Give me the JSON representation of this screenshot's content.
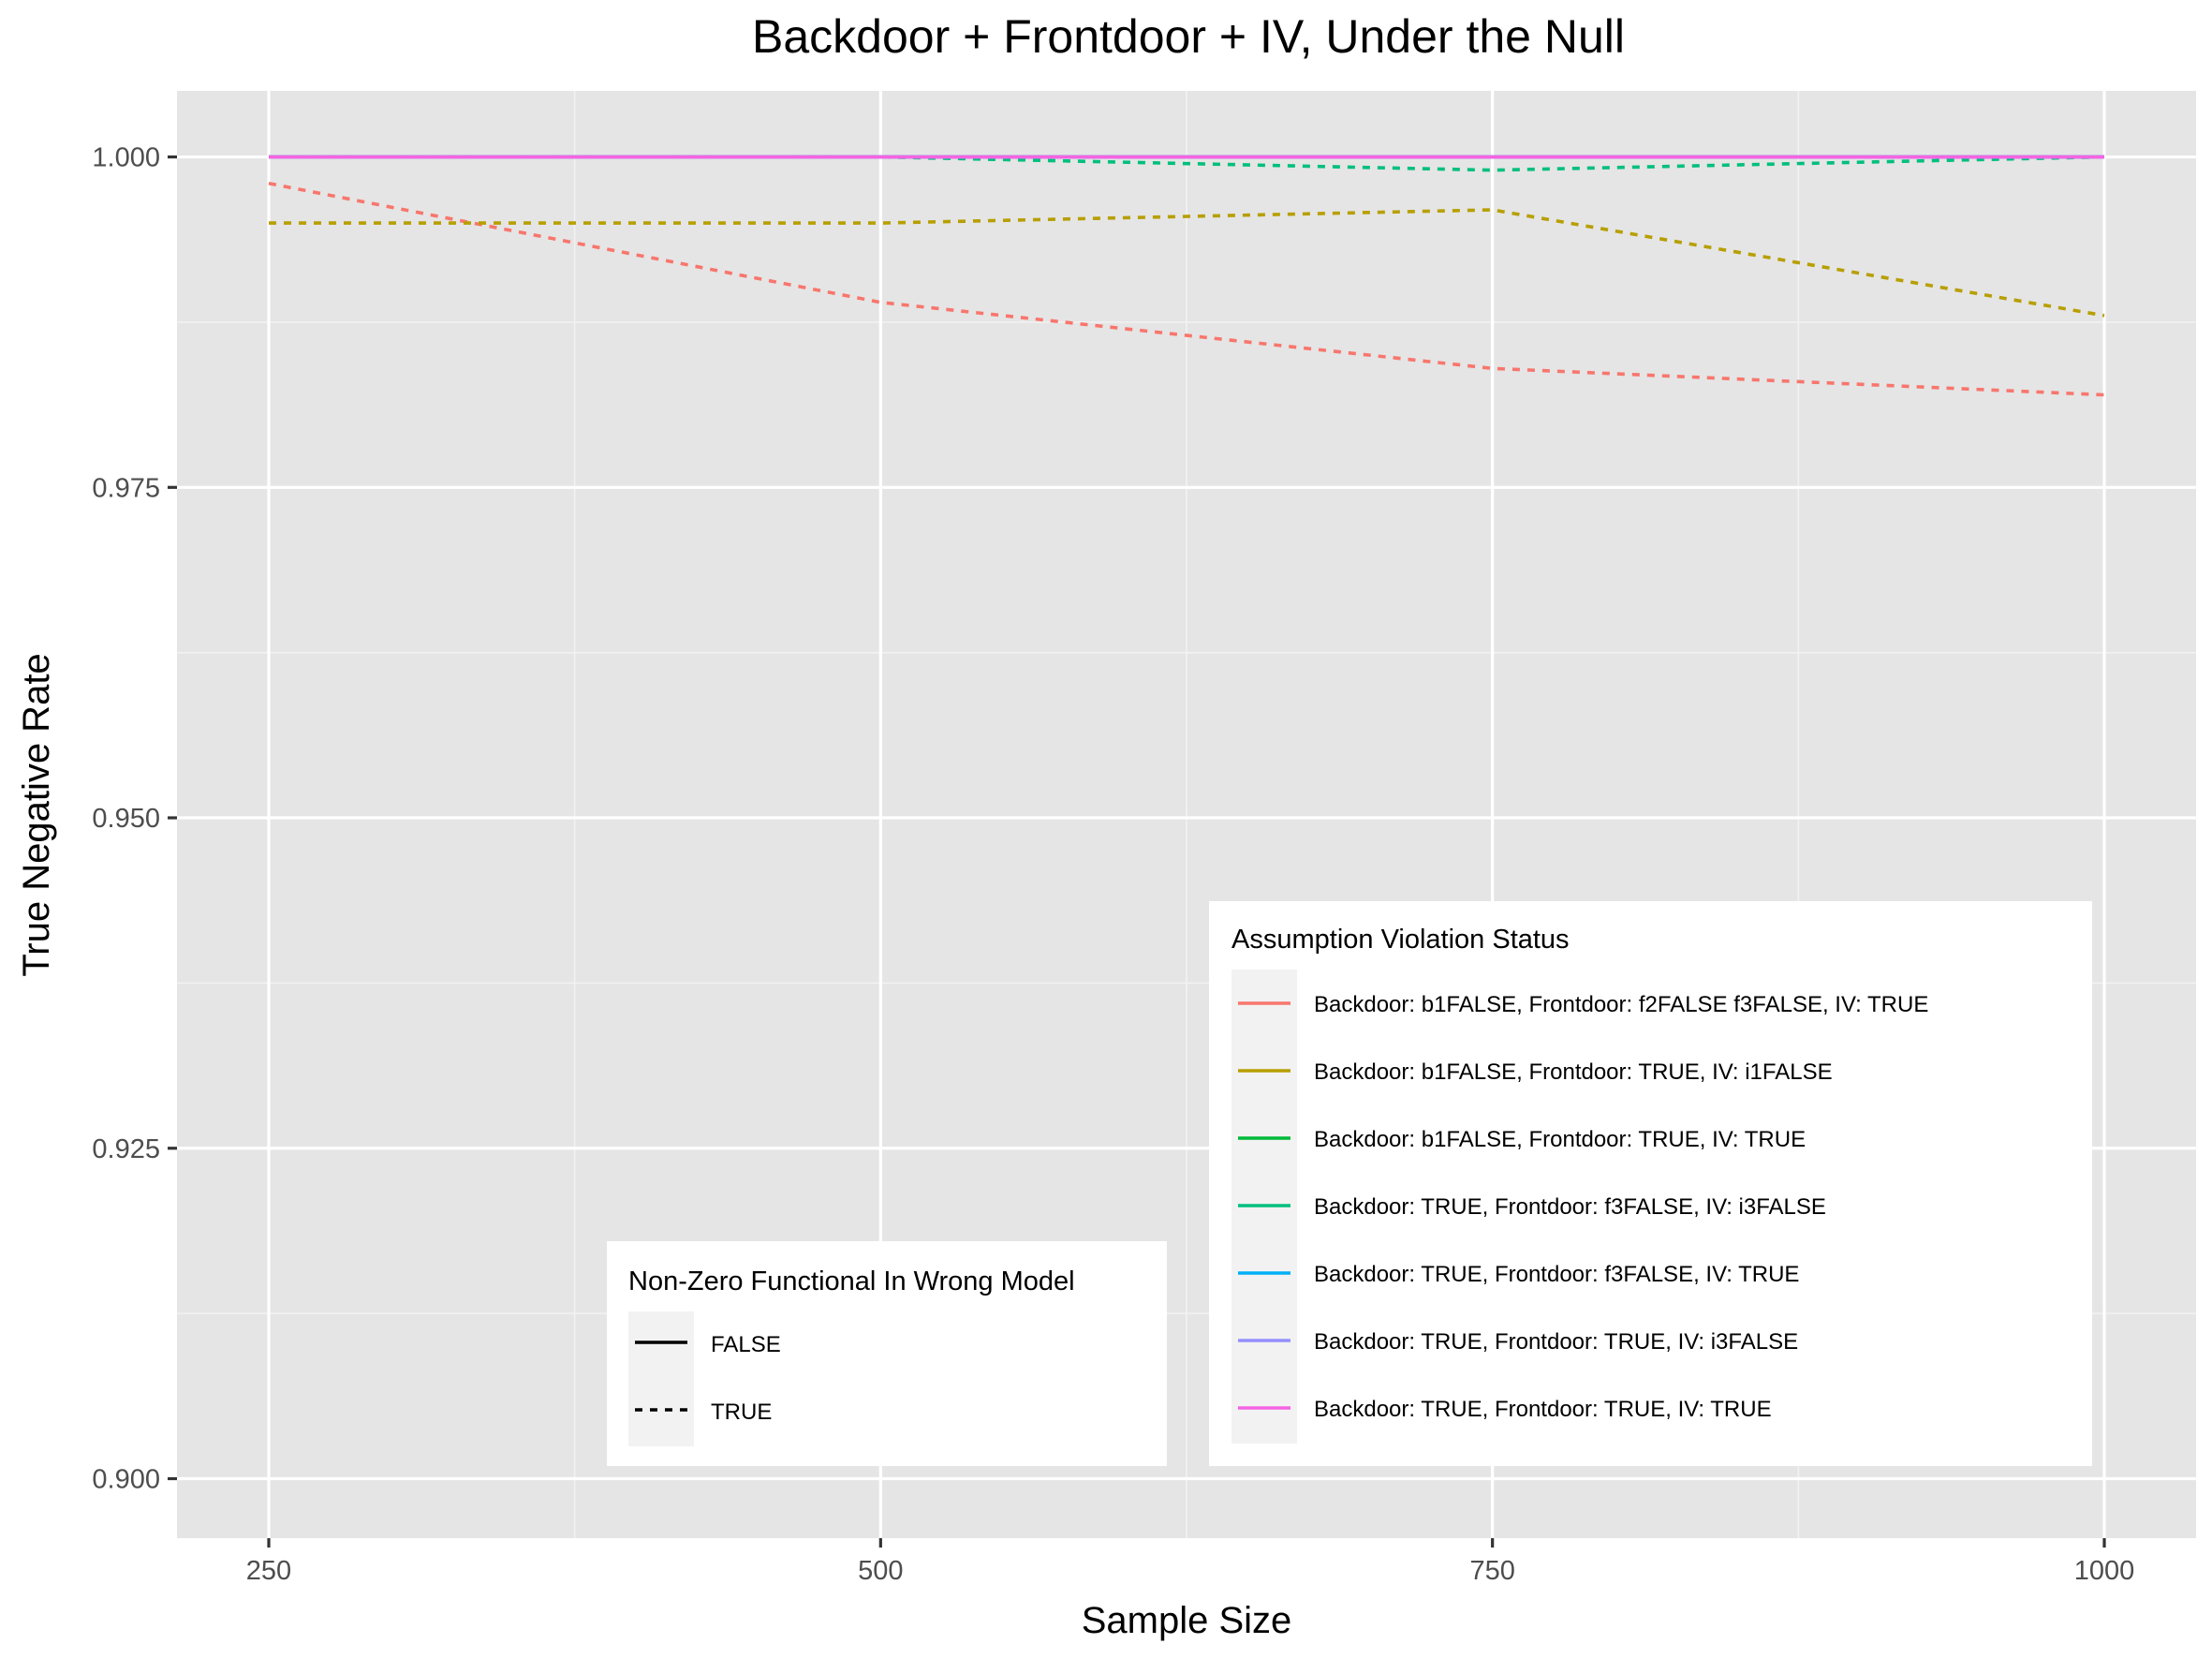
{
  "chart_data": {
    "type": "line",
    "title": "Backdoor + Frontdoor + IV, Under the Null",
    "xlabel": "Sample Size",
    "ylabel": "True Negative Rate",
    "x": [
      250,
      500,
      750,
      1000
    ],
    "xlim": [
      212.5,
      1037.5
    ],
    "ylim": [
      0.8955,
      1.005
    ],
    "x_ticks": [
      250,
      500,
      750,
      1000
    ],
    "x_tick_labels": [
      "250",
      "500",
      "750",
      "1000"
    ],
    "y_ticks": [
      0.9,
      0.925,
      0.95,
      0.975,
      1.0
    ],
    "y_tick_labels": [
      "0.900",
      "0.925",
      "0.950",
      "0.975",
      "1.000"
    ],
    "grid": true,
    "background": "#e5e5e5",
    "series": [
      {
        "name": "Backdoor: b1FALSE, Frontdoor: f2FALSE f3FALSE, IV: TRUE",
        "color": "#f8766d",
        "linetype": "TRUE",
        "values": [
          0.998,
          0.989,
          0.984,
          0.982
        ]
      },
      {
        "name": "Backdoor: b1FALSE, Frontdoor: TRUE, IV: i1FALSE",
        "color": "#b79f00",
        "linetype": "TRUE",
        "values": [
          0.995,
          0.995,
          0.996,
          0.988
        ]
      },
      {
        "name": "Backdoor: b1FALSE, Frontdoor: TRUE, IV: TRUE",
        "color": "#00ba38",
        "linetype": "FALSE",
        "values": [
          1.0,
          1.0,
          1.0,
          1.0
        ]
      },
      {
        "name": "Backdoor: TRUE, Frontdoor: f3FALSE, IV: i3FALSE",
        "color": "#00bf7d",
        "linetype": "TRUE",
        "values": [
          1.0,
          1.0,
          0.999,
          1.0
        ]
      },
      {
        "name": "Backdoor: TRUE, Frontdoor: f3FALSE, IV: TRUE",
        "color": "#00b0f6",
        "linetype": "FALSE",
        "values": [
          1.0,
          1.0,
          1.0,
          1.0
        ]
      },
      {
        "name": "Backdoor: TRUE, Frontdoor: TRUE, IV: i3FALSE",
        "color": "#9590ff",
        "linetype": "FALSE",
        "values": [
          1.0,
          1.0,
          1.0,
          1.0
        ]
      },
      {
        "name": "Backdoor: TRUE, Frontdoor: TRUE, IV: TRUE",
        "color": "#f564e3",
        "linetype": "FALSE",
        "values": [
          1.0,
          1.0,
          1.0,
          1.0
        ]
      }
    ],
    "legend_color": {
      "title": "Assumption Violation Status",
      "placement": "bottom-right",
      "items": [
        "Backdoor: b1FALSE, Frontdoor: f2FALSE f3FALSE, IV: TRUE",
        "Backdoor: b1FALSE, Frontdoor: TRUE, IV: i1FALSE",
        "Backdoor: b1FALSE, Frontdoor: TRUE, IV: TRUE",
        "Backdoor: TRUE, Frontdoor: f3FALSE, IV: i3FALSE",
        "Backdoor: TRUE, Frontdoor: f3FALSE, IV: TRUE",
        "Backdoor: TRUE, Frontdoor: TRUE, IV: i3FALSE",
        "Backdoor: TRUE, Frontdoor: TRUE, IV: TRUE"
      ]
    },
    "legend_linetype": {
      "title": "Non-Zero Functional In Wrong Model",
      "placement": "bottom-center",
      "items": [
        "FALSE",
        "TRUE"
      ]
    }
  }
}
